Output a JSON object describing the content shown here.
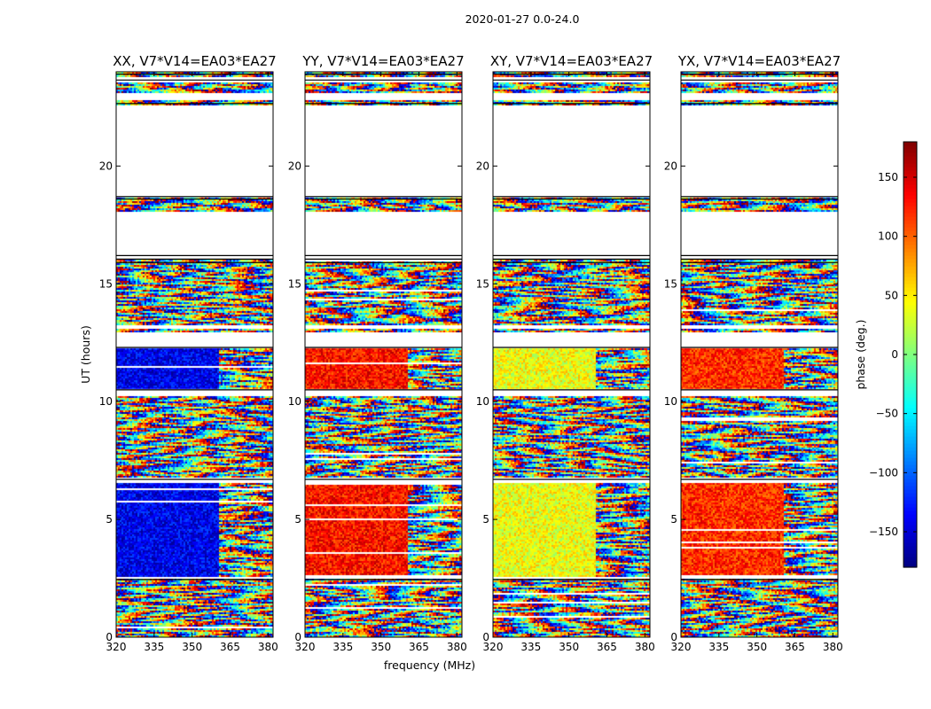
{
  "suptitle": "2020-01-27 0.0-24.0",
  "colorbar": {
    "label": "phase (deg.)",
    "ticks": [
      150,
      100,
      50,
      0,
      -50,
      -100,
      -150
    ],
    "tick_labels": [
      "150",
      "100",
      "50",
      "0",
      "−50",
      "−100",
      "−150"
    ],
    "range": [
      -180,
      180
    ],
    "colormap": [
      "#00007f",
      "#0000ff",
      "#007fff",
      "#00ffff",
      "#7fff7f",
      "#ffff00",
      "#ff7f00",
      "#ff0000",
      "#7f0000"
    ]
  },
  "chart_data": [
    {
      "type": "heatmap",
      "title": "XX, V7*V14=EA03*EA27",
      "xlabel": "",
      "ylabel": "UT (hours)",
      "xlim": [
        320,
        382
      ],
      "ylim": [
        0,
        24
      ],
      "xticks": [
        320,
        335,
        350,
        365,
        380
      ],
      "yticks": [
        0,
        5,
        10,
        15,
        20
      ],
      "dominant_phase": -140,
      "coherent_freq_max": 360
    },
    {
      "type": "heatmap",
      "title": "YY, V7*V14=EA03*EA27",
      "xlabel": "frequency (MHz)",
      "ylabel": "",
      "xlim": [
        320,
        382
      ],
      "ylim": [
        0,
        24
      ],
      "xticks": [
        320,
        335,
        350,
        365,
        380
      ],
      "yticks": [
        0,
        5,
        10,
        15,
        20
      ],
      "dominant_phase": 130,
      "coherent_freq_max": 360
    },
    {
      "type": "heatmap",
      "title": "XY, V7*V14=EA03*EA27",
      "xlabel": "",
      "ylabel": "",
      "xlim": [
        320,
        382
      ],
      "ylim": [
        0,
        24
      ],
      "xticks": [
        320,
        335,
        350,
        365,
        380
      ],
      "yticks": [
        0,
        5,
        10,
        15,
        20
      ],
      "dominant_phase": 40,
      "coherent_freq_max": 360
    },
    {
      "type": "heatmap",
      "title": "YX, V7*V14=EA03*EA27",
      "xlabel": "",
      "ylabel": "",
      "xlim": [
        320,
        382
      ],
      "ylim": [
        0,
        24
      ],
      "xticks": [
        320,
        335,
        350,
        365,
        380
      ],
      "yticks": [
        0,
        5,
        10,
        15,
        20
      ],
      "dominant_phase": 120,
      "coherent_freq_max": 360
    }
  ]
}
